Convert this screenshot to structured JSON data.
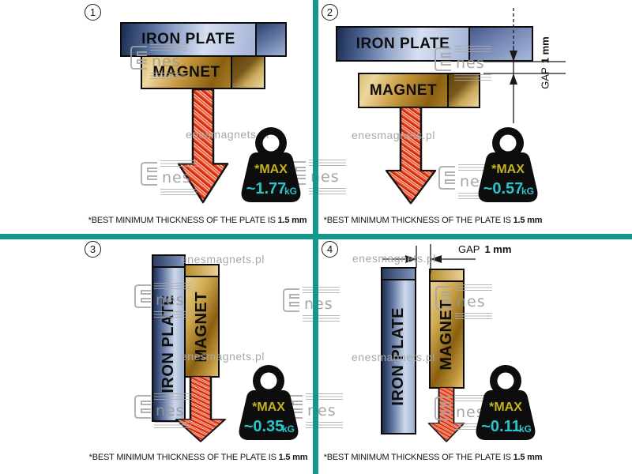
{
  "watermark": {
    "logo_text": "nes",
    "site_text": "enesmagnets.pl"
  },
  "colors": {
    "divider_teal": "#15988c",
    "max_yellow": "#c4b31f",
    "value_cyan": "#2cc4cc",
    "arrow_red": "#e5401a",
    "watermark_gray": "#a8a8a8"
  },
  "panels": [
    {
      "number": "1",
      "plate_label": "IRON PLATE",
      "magnet_label": "MAGNET",
      "max_label": "*MAX",
      "value": "~1.77",
      "unit": "kG",
      "caption_text": "*BEST MINIMUM THICKNESS OF THE PLATE IS",
      "caption_bold": "1.5 mm"
    },
    {
      "number": "2",
      "plate_label": "IRON PLATE",
      "magnet_label": "MAGNET",
      "max_label": "*MAX",
      "value": "~0.57",
      "unit": "kG",
      "gap_label": "GAP",
      "gap_value": "1 mm",
      "caption_text": "*BEST MINIMUM THICKNESS OF THE PLATE IS",
      "caption_bold": "1.5 mm"
    },
    {
      "number": "3",
      "plate_label": "IRON PLATE",
      "magnet_label": "MAGNET",
      "max_label": "*MAX",
      "value": "~0.35",
      "unit": "kG",
      "caption_text": "*BEST MINIMUM THICKNESS OF THE PLATE IS",
      "caption_bold": "1.5 mm"
    },
    {
      "number": "4",
      "plate_label": "IRON PLATE",
      "magnet_label": "MAGNET",
      "max_label": "*MAX",
      "value": "~0.11",
      "unit": "kG",
      "gap_label": "GAP",
      "gap_value": "1 mm",
      "caption_text": "*BEST MINIMUM THICKNESS OF THE PLATE IS",
      "caption_bold": "1.5 mm"
    }
  ]
}
